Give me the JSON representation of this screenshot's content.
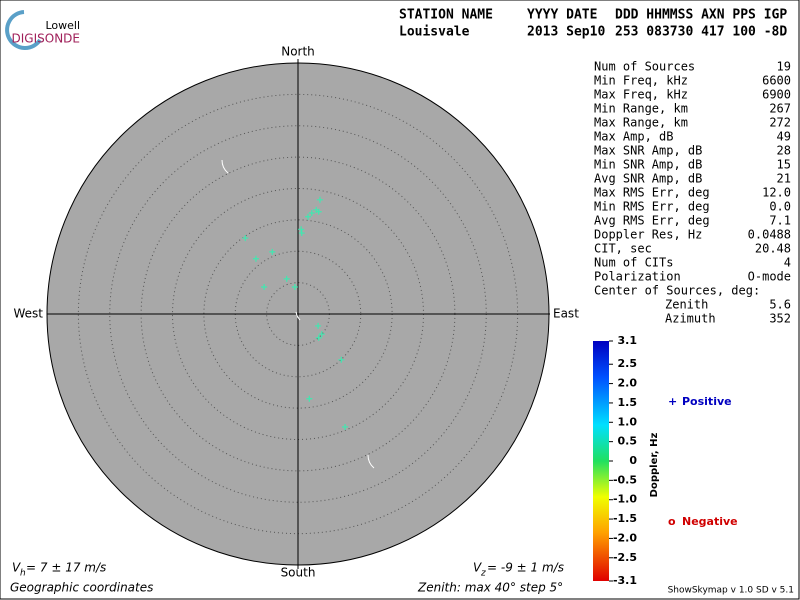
{
  "logo": {
    "top": "Lowell",
    "bottom": "DIGISONDE"
  },
  "header": {
    "lines": [
      [
        "STATION NAME",
        "YYYY DATE",
        "DDD HHMMSS AXN PPS IGP"
      ],
      [
        "Louisvale",
        "2013 Sep10",
        "253 083730 417 100 -8D"
      ]
    ]
  },
  "stats": {
    "rows": [
      [
        "Num of Sources",
        "19"
      ],
      [
        "Min Freq, kHz",
        "6600"
      ],
      [
        "Max Freq, kHz",
        "6900"
      ],
      [
        "Min Range, km",
        "267"
      ],
      [
        "Max Range, km",
        "272"
      ],
      [
        "Max Amp, dB",
        "49"
      ],
      [
        "Max SNR Amp, dB",
        "28"
      ],
      [
        "Min SNR Amp, dB",
        "15"
      ],
      [
        "Avg SNR Amp, dB",
        "21"
      ],
      [
        "Max RMS Err, deg",
        "12.0"
      ],
      [
        "Min RMS Err, deg",
        "0.0"
      ],
      [
        "Avg RMS Err, deg",
        "7.1"
      ],
      [
        "Doppler Res, Hz",
        "0.0488"
      ],
      [
        "CIT, sec",
        "20.48"
      ],
      [
        "Num of CITs",
        "4"
      ],
      [
        "Polarization",
        "O-mode"
      ]
    ],
    "center": {
      "title": "Center of Sources, deg:",
      "rows": [
        [
          "Zenith",
          "5.6"
        ],
        [
          "Azimuth",
          "352"
        ]
      ]
    }
  },
  "chart_data": {
    "type": "skymap",
    "directions": {
      "north": "North",
      "south": "South",
      "west": "West",
      "east": "East"
    },
    "rlim": [
      0,
      40
    ],
    "rings": [
      5,
      10,
      15,
      20,
      25,
      30,
      35,
      40
    ],
    "color": "#40e8b0",
    "x": [
      3.5,
      2.9,
      2.2,
      1.6,
      3.3,
      0.5,
      0.6,
      -8.4,
      -4.1,
      -6.7,
      -1.8,
      -0.5,
      -5.4,
      3.2,
      3.8,
      3.3,
      6.9,
      1.8,
      7.5
    ],
    "values": [
      18.2,
      16.6,
      16.1,
      15.5,
      16.3,
      13.5,
      12.9,
      12.1,
      9.9,
      8.8,
      5.6,
      4.3,
      4.3,
      -1.9,
      -3.2,
      -3.8,
      -7.3,
      -13.5,
      -18.0
    ],
    "colorbar": {
      "label": "Doppler, Hz",
      "lim": [
        -3.1,
        3.1
      ],
      "ticks": [
        3.1,
        2.5,
        {
          "value": 2,
          "label": "2.0"
        },
        1.5,
        {
          "value": 1,
          "label": "1.0"
        },
        0.5,
        0,
        -0.5,
        {
          "value": -1,
          "label": "-1.0"
        },
        -1.5,
        {
          "value": -2,
          "label": "-2.0"
        },
        -2.5,
        -3.1
      ]
    },
    "legend": {
      "positive": {
        "symbol": "+",
        "text": "Positive"
      },
      "negative": {
        "symbol": "o",
        "text": "Negative"
      }
    },
    "vh": {
      "symbol": "V",
      "sub": "h",
      "text": " = 7 ± 17 m/s"
    },
    "vz": {
      "symbol": "V",
      "sub": "z",
      "text": " = -9 ± 1 m/s"
    },
    "footer": {
      "left": "Geographic coordinates",
      "middle": "Zenith: max 40°  step 5°",
      "right": "ShowSkymap v 1.0   SD v 5.1"
    }
  }
}
